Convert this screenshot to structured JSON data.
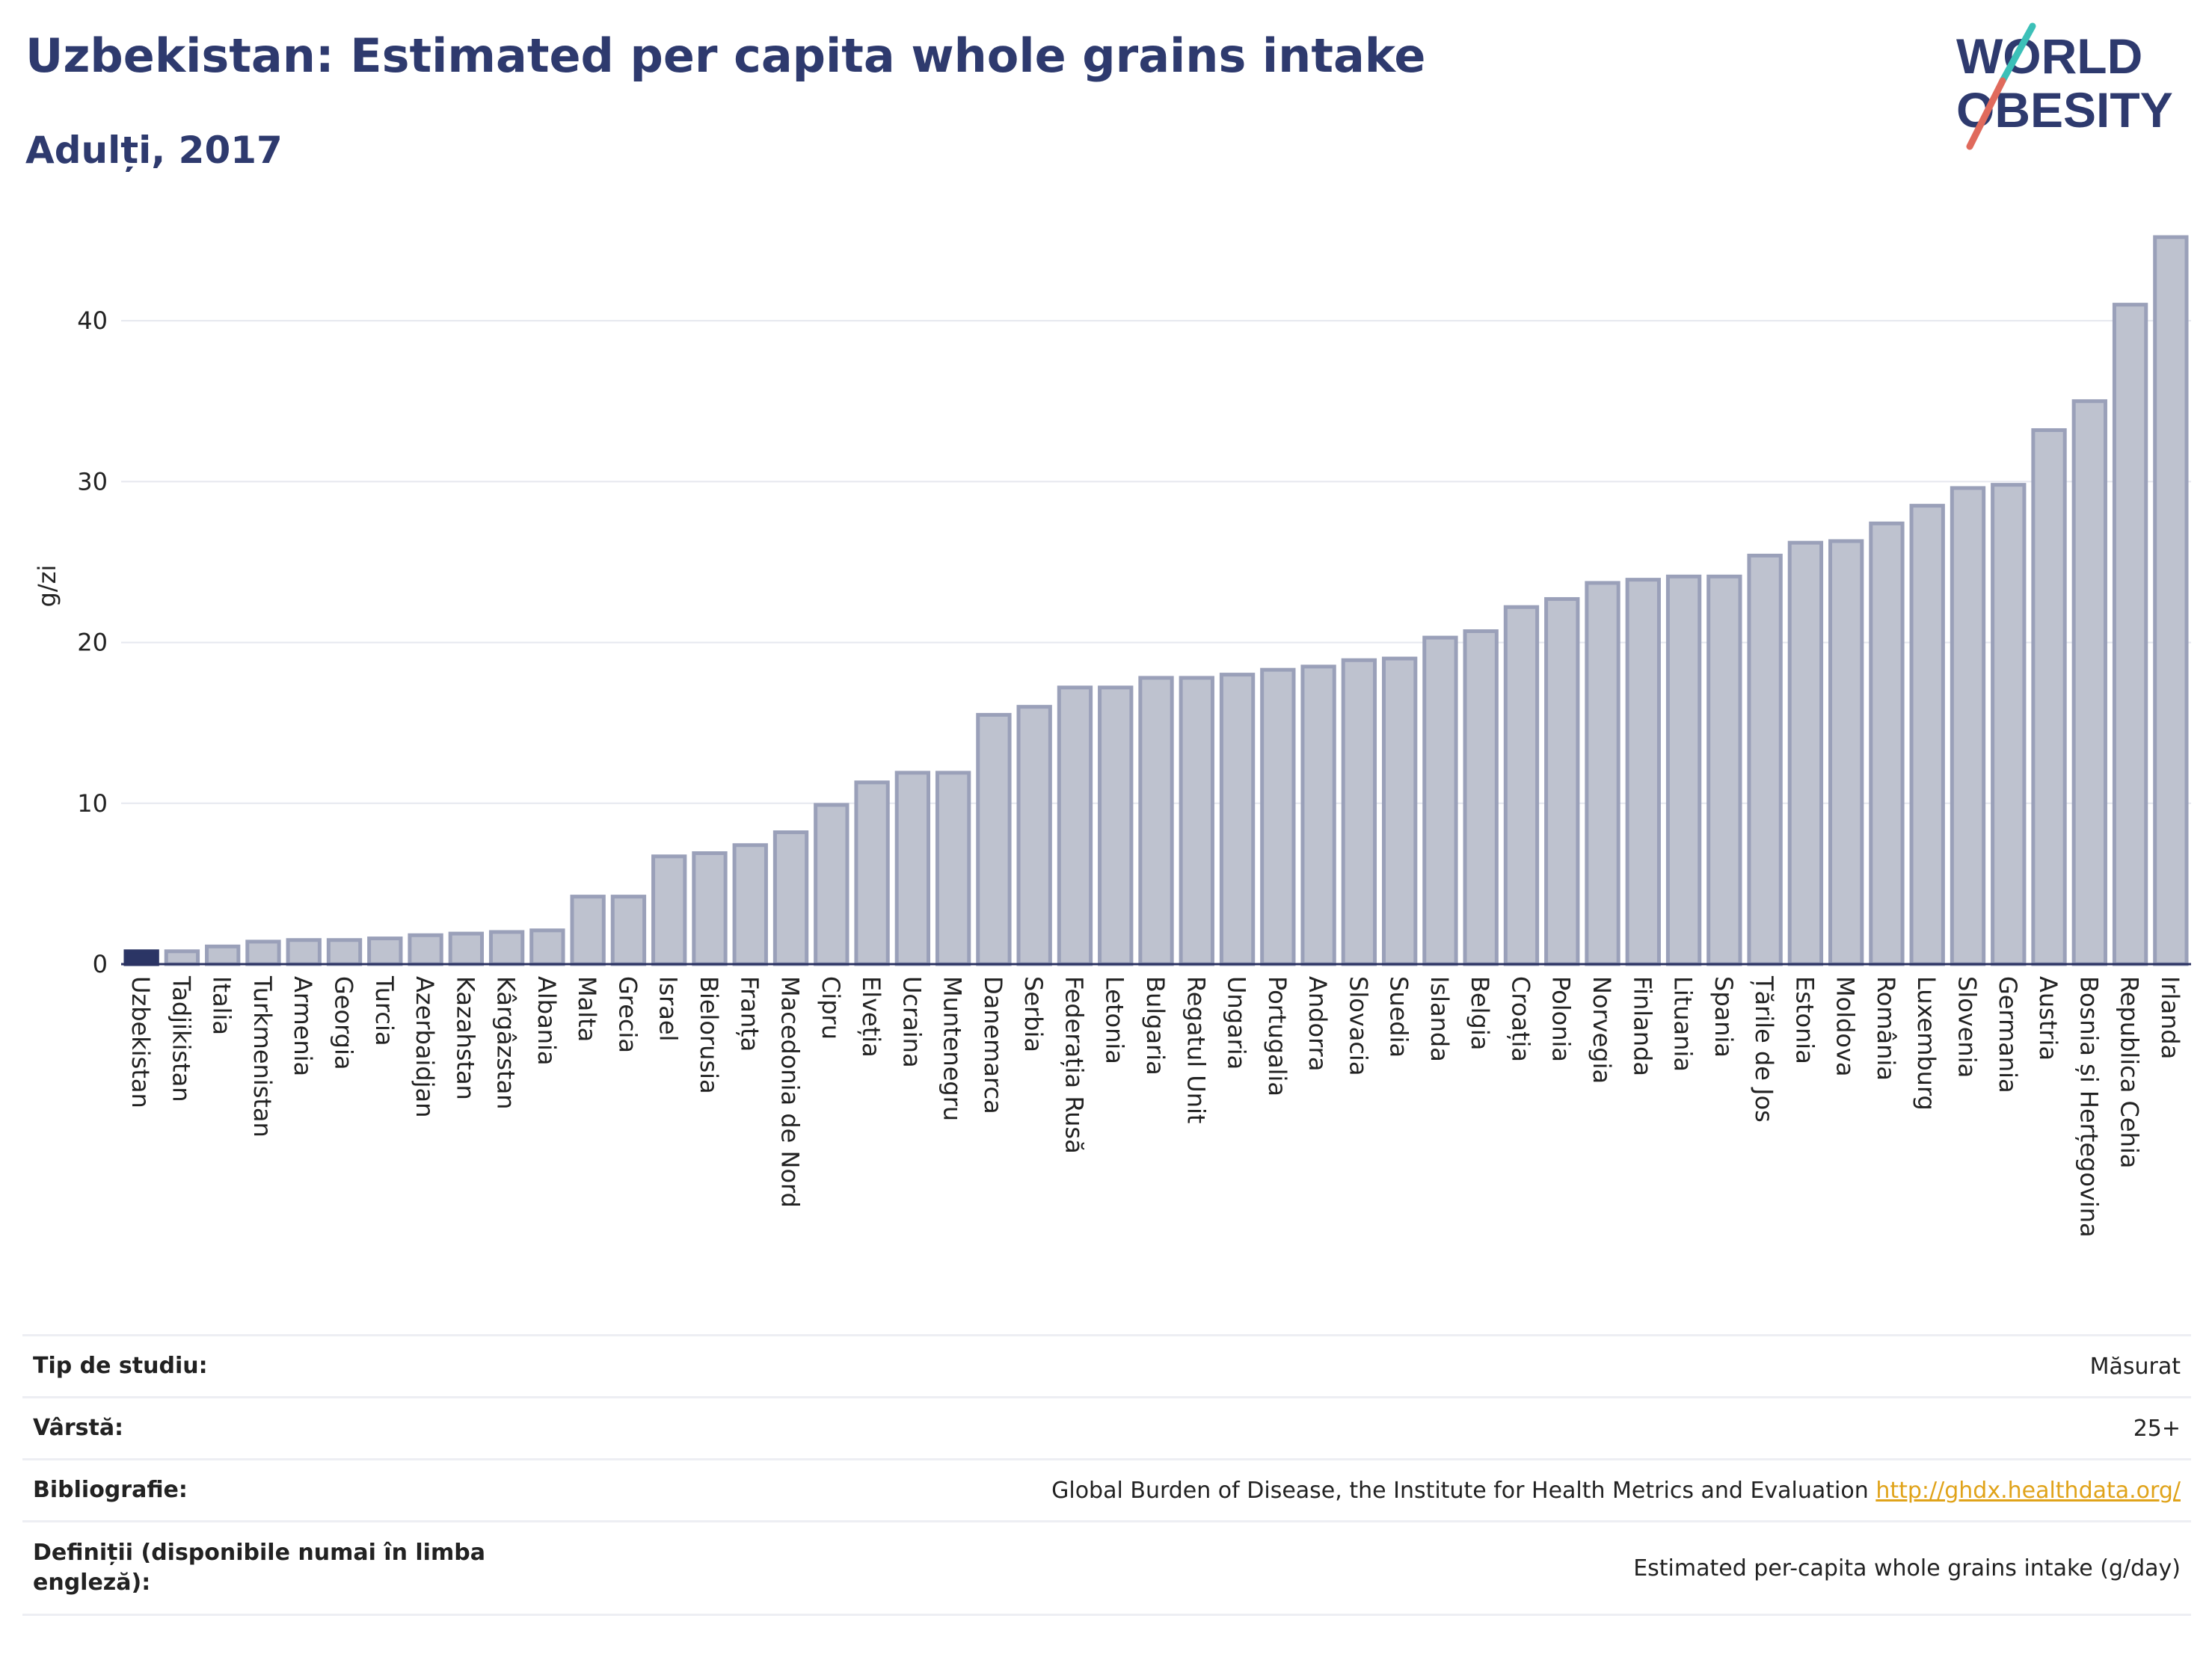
{
  "header": {
    "title": "Uzbekistan: Estimated per capita whole grains intake",
    "subtitle": "Adulți, 2017"
  },
  "logo": {
    "line1": "WORLD",
    "line2": "OBESITY"
  },
  "colors": {
    "highlight": "#2b3565",
    "bar_fill": "#bec2cf",
    "bar_stroke": "#9aa0b9",
    "title": "#2e3a6e"
  },
  "chart_data": {
    "type": "bar",
    "ylabel": "g/zi",
    "ylim": [
      0,
      46
    ],
    "yticks": [
      0,
      10,
      20,
      30,
      40
    ],
    "grid": true,
    "highlight": "Uzbekistan",
    "categories": [
      "Uzbekistan",
      "Tadjikistan",
      "Italia",
      "Turkmenistan",
      "Armenia",
      "Georgia",
      "Turcia",
      "Azerbaidjan",
      "Kazahstan",
      "Kârgâzstan",
      "Albania",
      "Malta",
      "Grecia",
      "Israel",
      "Bielorusia",
      "Franța",
      "Macedonia de Nord",
      "Cipru",
      "Elveția",
      "Ucraina",
      "Muntenegru",
      "Danemarca",
      "Serbia",
      "Federația Rusă",
      "Letonia",
      "Bulgaria",
      "Regatul Unit",
      "Ungaria",
      "Portugalia",
      "Andorra",
      "Slovacia",
      "Suedia",
      "Islanda",
      "Belgia",
      "Croația",
      "Polonia",
      "Norvegia",
      "Finlanda",
      "Lituania",
      "Spania",
      "Țările de Jos",
      "Estonia",
      "Moldova",
      "România",
      "Luxemburg",
      "Slovenia",
      "Germania",
      "Austria",
      "Bosnia și Herțegovina",
      "Republica Cehia",
      "Irlanda"
    ],
    "values": [
      0.8,
      0.8,
      1.1,
      1.4,
      1.5,
      1.5,
      1.6,
      1.8,
      1.9,
      2.0,
      2.1,
      4.2,
      4.2,
      6.7,
      6.9,
      7.4,
      8.2,
      9.9,
      11.3,
      11.9,
      11.9,
      15.5,
      16.0,
      17.2,
      17.2,
      17.8,
      17.8,
      18.0,
      18.3,
      18.5,
      18.9,
      19.0,
      20.3,
      20.7,
      22.2,
      22.7,
      23.7,
      23.9,
      24.1,
      24.1,
      25.4,
      26.2,
      26.3,
      27.4,
      28.5,
      29.6,
      29.8,
      33.2,
      35.0,
      41.0,
      45.2
    ]
  },
  "info": {
    "rows": [
      {
        "label": "Tip de studiu:",
        "value": "Măsurat"
      },
      {
        "label": "Vârstă:",
        "value": "25+"
      },
      {
        "label": "Bibliografie:",
        "value": "Global Burden of Disease, the Institute for Health Metrics and Evaluation",
        "link": "http://ghdx.healthdata.org/"
      },
      {
        "label": "Definiții (disponibile numai în limba engleză):",
        "value": "Estimated per-capita whole grains intake (g/day)"
      }
    ]
  }
}
